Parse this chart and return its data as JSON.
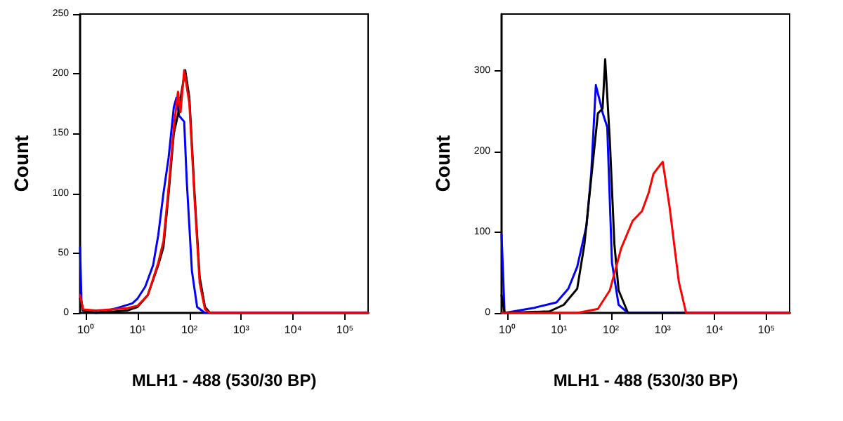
{
  "chart_data": [
    {
      "type": "line",
      "xlabel": "MLH1 - 488 (530/30 BP)",
      "ylabel": "Count",
      "log": "x",
      "xlim": [
        0.78,
        280000
      ],
      "xticks": [
        {
          "value": 1,
          "label": "10⁰"
        },
        {
          "value": 10,
          "label": "10¹"
        },
        {
          "value": 100,
          "label": "10²"
        },
        {
          "value": 1000,
          "label": "10³"
        },
        {
          "value": 10000,
          "label": "10⁴"
        },
        {
          "value": 100000,
          "label": "10⁵"
        }
      ],
      "ylim": [
        0,
        250
      ],
      "yticks": [
        0,
        50,
        100,
        150,
        200,
        250
      ],
      "marker": "none",
      "line_style": "solid",
      "series": [
        {
          "color": "#0000ff",
          "x": [
            0.78,
            0.83,
            0.89,
            1.58,
            2.51,
            3.98,
            7.94,
            10,
            14.1,
            20,
            25.1,
            31.6,
            39.8,
            50.1,
            56.2,
            63.1,
            79.4,
            89.1,
            112,
            141,
            200,
            280000
          ],
          "values": [
            55,
            10,
            2,
            0,
            2,
            4,
            8,
            12,
            22,
            40,
            65,
            100,
            130,
            172,
            180,
            165,
            160,
            110,
            35,
            5,
            0,
            0
          ]
        },
        {
          "color": "#000000",
          "x": [
            0.78,
            0.89,
            1.58,
            3.16,
            6.31,
            10,
            15.8,
            25.1,
            31.6,
            39.8,
            50.1,
            63.1,
            70.8,
            83.2,
            100,
            126,
            158,
            200,
            251,
            280000
          ],
          "values": [
            12,
            2,
            0,
            1,
            2,
            5,
            15,
            40,
            55,
            100,
            150,
            170,
            185,
            203,
            180,
            100,
            30,
            5,
            0,
            0
          ]
        },
        {
          "color": "#ff0000",
          "x": [
            0.78,
            0.89,
            1.58,
            3.16,
            6.31,
            10,
            15.8,
            25.1,
            31.6,
            39.8,
            50.1,
            60.3,
            67.6,
            79.4,
            100,
            126,
            158,
            200,
            251,
            280000
          ],
          "values": [
            15,
            3,
            2,
            3,
            4,
            6,
            15,
            42,
            60,
            105,
            155,
            185,
            168,
            203,
            175,
            95,
            25,
            3,
            0,
            0
          ]
        }
      ]
    },
    {
      "type": "line",
      "xlabel": "MLH1 - 488 (530/30 BP)",
      "ylabel": "Count",
      "log": "x",
      "xlim": [
        0.78,
        280000
      ],
      "xticks": [
        {
          "value": 1,
          "label": "10⁰"
        },
        {
          "value": 10,
          "label": "10¹"
        },
        {
          "value": 100,
          "label": "10²"
        },
        {
          "value": 1000,
          "label": "10³"
        },
        {
          "value": 10000,
          "label": "10⁴"
        },
        {
          "value": 100000,
          "label": "10⁵"
        }
      ],
      "ylim": [
        0,
        370
      ],
      "yticks": [
        0,
        100,
        200,
        300
      ],
      "marker": "none",
      "line_style": "solid",
      "series": [
        {
          "color": "#0000ff",
          "x": [
            0.78,
            0.89,
            3.16,
            8.91,
            15.1,
            22.4,
            33.9,
            41.7,
            51.3,
            63.1,
            69.2,
            85.1,
            105,
            141,
            214,
            280000
          ],
          "values": [
            97,
            0,
            6,
            13,
            30,
            57,
            108,
            172,
            282,
            259,
            248,
            230,
            62,
            10,
            0,
            0
          ]
        },
        {
          "color": "#000000",
          "x": [
            0.78,
            0.89,
            6.61,
            12.3,
            22.4,
            30.9,
            41.7,
            56.2,
            69.2,
            77.6,
            95.5,
            117,
            141,
            214,
            280000
          ],
          "values": [
            22,
            0,
            2,
            10,
            30,
            85,
            166,
            247,
            253,
            314,
            213,
            85,
            28,
            0,
            0
          ]
        },
        {
          "color": "#ff0000",
          "x": [
            0.78,
            22.4,
            56.2,
            95.5,
            158,
            263,
            398,
            537,
            661,
            912,
            1000,
            1350,
            2040,
            2820,
            280000
          ],
          "values": [
            0,
            0,
            5,
            28,
            80,
            114,
            126,
            149,
            172,
            184,
            187,
            132,
            39,
            0,
            0
          ]
        }
      ]
    }
  ]
}
